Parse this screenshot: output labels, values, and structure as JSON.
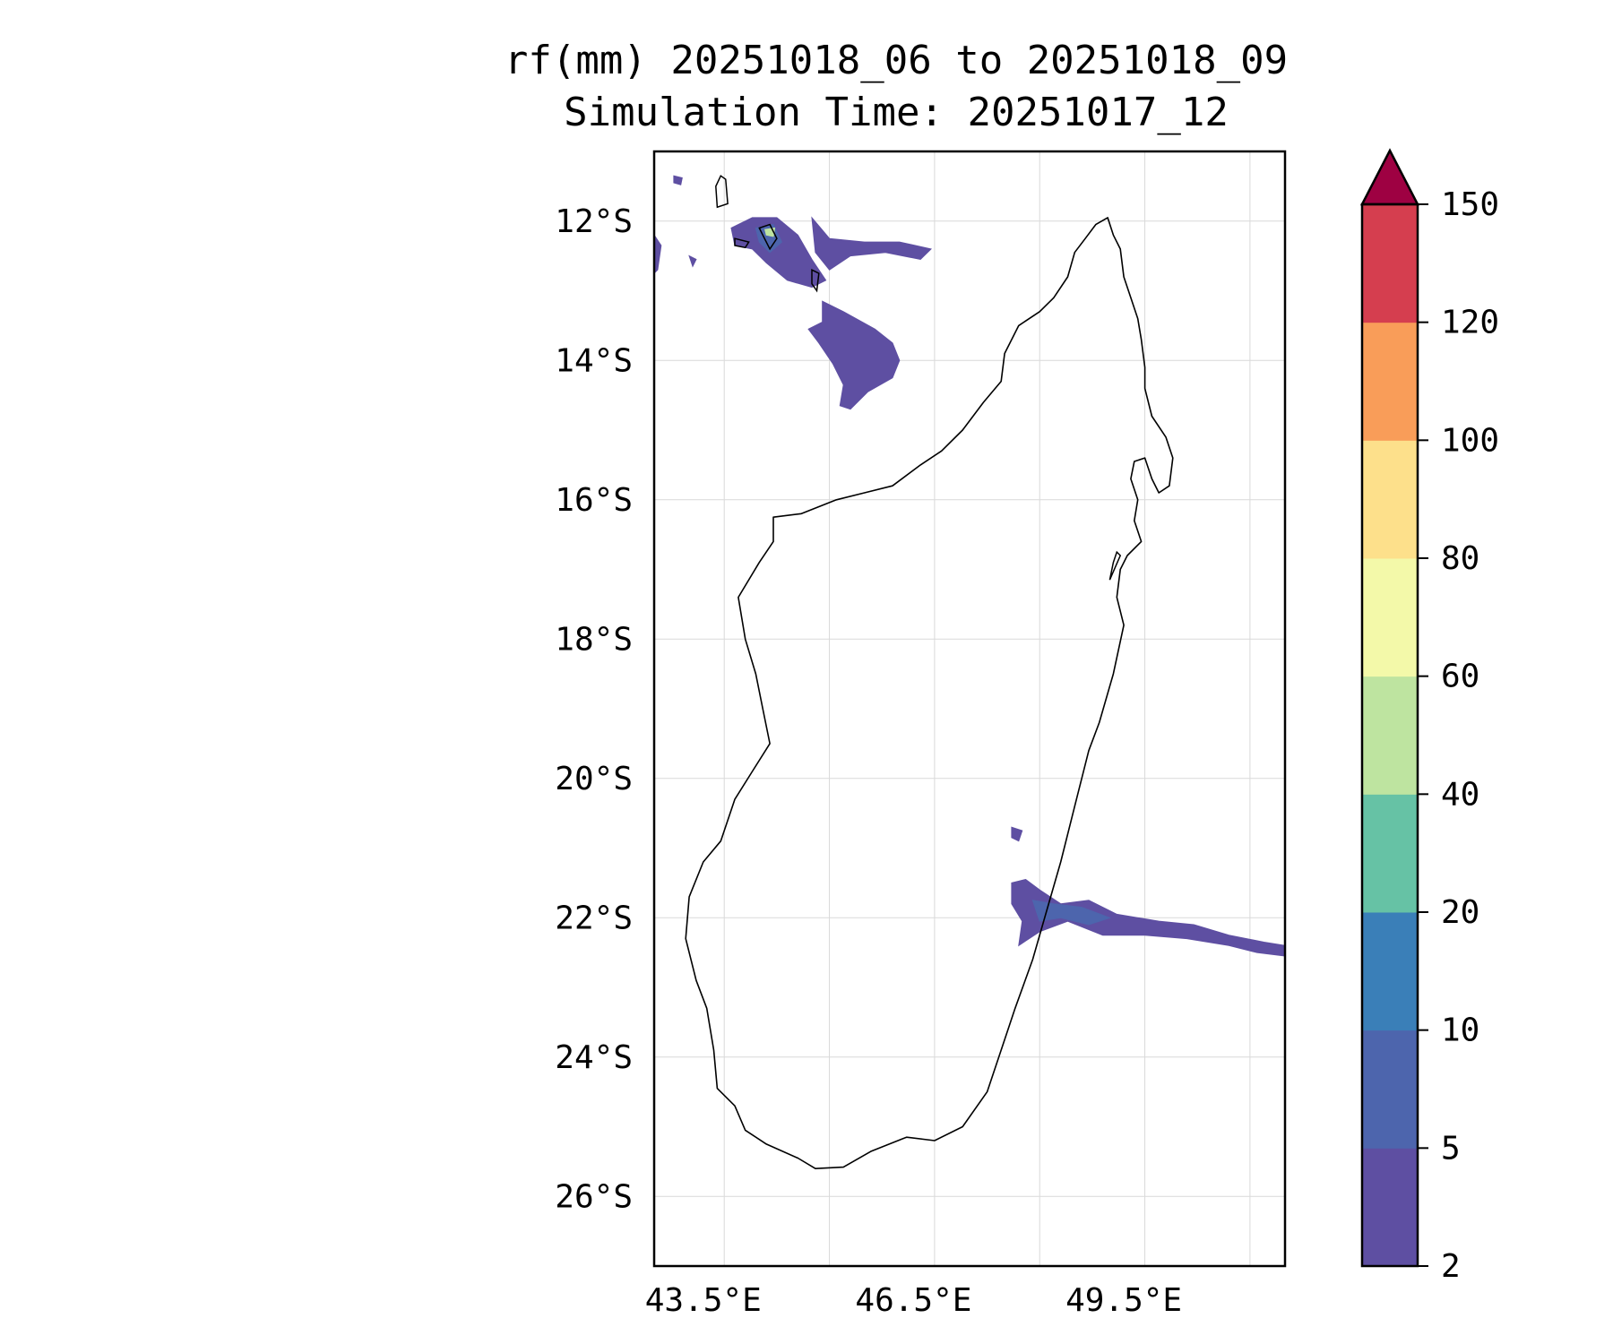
{
  "title": {
    "line1": "rf(mm) 20251018_06 to 20251018_09",
    "line2": "Simulation Time: 20251017_12"
  },
  "map": {
    "lon_range": [
      42.8,
      51.8
    ],
    "lat_range": [
      -27.0,
      -11.0
    ],
    "lon_ticks": [
      {
        "value": 43.5,
        "label": "43.5°E"
      },
      {
        "value": 46.5,
        "label": "46.5°E"
      },
      {
        "value": 49.5,
        "label": "49.5°E"
      }
    ],
    "lat_ticks": [
      {
        "value": -12,
        "label": "12°S"
      },
      {
        "value": -14,
        "label": "14°S"
      },
      {
        "value": -16,
        "label": "16°S"
      },
      {
        "value": -18,
        "label": "18°S"
      },
      {
        "value": -20,
        "label": "20°S"
      },
      {
        "value": -22,
        "label": "22°S"
      },
      {
        "value": -24,
        "label": "24°S"
      },
      {
        "value": -26,
        "label": "26°S"
      }
    ],
    "grid_lons": [
      43.8,
      45.3,
      46.8,
      48.3,
      49.8,
      51.3
    ],
    "grid": true,
    "coastline_color": "#000000",
    "madagascar_coast": [
      [
        49.27,
        -11.95
      ],
      [
        49.35,
        -12.2
      ],
      [
        49.45,
        -12.4
      ],
      [
        49.5,
        -12.8
      ],
      [
        49.6,
        -13.1
      ],
      [
        49.7,
        -13.4
      ],
      [
        49.75,
        -13.7
      ],
      [
        49.8,
        -14.1
      ],
      [
        49.8,
        -14.4
      ],
      [
        49.9,
        -14.8
      ],
      [
        50.1,
        -15.1
      ],
      [
        50.2,
        -15.4
      ],
      [
        50.15,
        -15.8
      ],
      [
        50.0,
        -15.9
      ],
      [
        49.9,
        -15.7
      ],
      [
        49.8,
        -15.4
      ],
      [
        49.65,
        -15.45
      ],
      [
        49.6,
        -15.7
      ],
      [
        49.7,
        -16.0
      ],
      [
        49.65,
        -16.3
      ],
      [
        49.75,
        -16.6
      ],
      [
        49.55,
        -16.8
      ],
      [
        49.45,
        -17.0
      ],
      [
        49.4,
        -17.4
      ],
      [
        49.5,
        -17.8
      ],
      [
        49.35,
        -18.5
      ],
      [
        49.15,
        -19.2
      ],
      [
        49.0,
        -19.6
      ],
      [
        48.8,
        -20.4
      ],
      [
        48.6,
        -21.2
      ],
      [
        48.4,
        -21.9
      ],
      [
        48.2,
        -22.6
      ],
      [
        47.95,
        -23.3
      ],
      [
        47.75,
        -23.9
      ],
      [
        47.55,
        -24.5
      ],
      [
        47.2,
        -25.0
      ],
      [
        46.8,
        -25.2
      ],
      [
        46.4,
        -25.15
      ],
      [
        45.9,
        -25.35
      ],
      [
        45.5,
        -25.58
      ],
      [
        45.1,
        -25.6
      ],
      [
        44.85,
        -25.45
      ],
      [
        44.4,
        -25.25
      ],
      [
        44.1,
        -25.05
      ],
      [
        43.95,
        -24.7
      ],
      [
        43.7,
        -24.45
      ],
      [
        43.65,
        -23.9
      ],
      [
        43.55,
        -23.3
      ],
      [
        43.4,
        -22.9
      ],
      [
        43.25,
        -22.3
      ],
      [
        43.3,
        -21.7
      ],
      [
        43.5,
        -21.2
      ],
      [
        43.75,
        -20.9
      ],
      [
        43.95,
        -20.3
      ],
      [
        44.2,
        -19.9
      ],
      [
        44.45,
        -19.5
      ],
      [
        44.35,
        -19.0
      ],
      [
        44.25,
        -18.5
      ],
      [
        44.1,
        -18.0
      ],
      [
        44.0,
        -17.4
      ],
      [
        44.3,
        -16.9
      ],
      [
        44.5,
        -16.6
      ],
      [
        44.5,
        -16.25
      ],
      [
        44.9,
        -16.2
      ],
      [
        45.4,
        -16.0
      ],
      [
        45.8,
        -15.9
      ],
      [
        46.2,
        -15.8
      ],
      [
        46.6,
        -15.5
      ],
      [
        46.9,
        -15.3
      ],
      [
        47.2,
        -15.0
      ],
      [
        47.5,
        -14.6
      ],
      [
        47.75,
        -14.3
      ],
      [
        47.8,
        -13.9
      ],
      [
        48.0,
        -13.5
      ],
      [
        48.3,
        -13.3
      ],
      [
        48.5,
        -13.1
      ],
      [
        48.7,
        -12.8
      ],
      [
        48.8,
        -12.45
      ],
      [
        48.95,
        -12.25
      ],
      [
        49.1,
        -12.05
      ],
      [
        49.27,
        -11.95
      ]
    ],
    "islands": [
      [
        [
          43.75,
          -11.35
        ],
        [
          43.82,
          -11.4
        ],
        [
          43.85,
          -11.75
        ],
        [
          43.7,
          -11.8
        ],
        [
          43.68,
          -11.5
        ],
        [
          43.75,
          -11.35
        ]
      ],
      [
        [
          44.3,
          -12.1
        ],
        [
          44.45,
          -12.05
        ],
        [
          44.55,
          -12.25
        ],
        [
          44.45,
          -12.4
        ],
        [
          44.35,
          -12.2
        ],
        [
          44.3,
          -12.1
        ]
      ],
      [
        [
          43.95,
          -12.25
        ],
        [
          44.15,
          -12.3
        ],
        [
          44.1,
          -12.38
        ],
        [
          43.95,
          -12.35
        ],
        [
          43.95,
          -12.25
        ]
      ],
      [
        [
          45.05,
          -12.7
        ],
        [
          45.15,
          -12.75
        ],
        [
          45.12,
          -13.0
        ],
        [
          45.05,
          -12.9
        ],
        [
          45.05,
          -12.7
        ]
      ],
      [
        [
          49.4,
          -16.75
        ],
        [
          49.45,
          -16.8
        ],
        [
          49.3,
          -17.15
        ],
        [
          49.35,
          -16.9
        ],
        [
          49.4,
          -16.75
        ]
      ]
    ],
    "precip_shapes": [
      {
        "level": 0,
        "points": [
          [
            43.9,
            -12.1
          ],
          [
            44.2,
            -11.95
          ],
          [
            44.55,
            -11.95
          ],
          [
            44.85,
            -12.2
          ],
          [
            45.05,
            -12.55
          ],
          [
            45.25,
            -12.85
          ],
          [
            45.05,
            -12.95
          ],
          [
            44.7,
            -12.85
          ],
          [
            44.4,
            -12.6
          ],
          [
            44.2,
            -12.4
          ],
          [
            43.95,
            -12.35
          ],
          [
            43.9,
            -12.1
          ]
        ]
      },
      {
        "level": 1,
        "points": [
          [
            44.25,
            -12.1
          ],
          [
            44.5,
            -12.05
          ],
          [
            44.62,
            -12.3
          ],
          [
            44.45,
            -12.45
          ],
          [
            44.3,
            -12.3
          ],
          [
            44.25,
            -12.1
          ]
        ]
      },
      {
        "level": 4,
        "points": [
          [
            44.38,
            -12.12
          ],
          [
            44.52,
            -12.1
          ],
          [
            44.5,
            -12.22
          ],
          [
            44.4,
            -12.2
          ],
          [
            44.38,
            -12.12
          ]
        ]
      },
      {
        "level": 0,
        "points": [
          [
            45.05,
            -11.95
          ],
          [
            45.3,
            -12.25
          ],
          [
            45.8,
            -12.3
          ],
          [
            46.3,
            -12.3
          ],
          [
            46.75,
            -12.4
          ],
          [
            46.6,
            -12.55
          ],
          [
            46.1,
            -12.45
          ],
          [
            45.6,
            -12.5
          ],
          [
            45.3,
            -12.7
          ],
          [
            45.1,
            -12.45
          ],
          [
            45.05,
            -11.95
          ]
        ]
      },
      {
        "level": 0,
        "points": [
          [
            45.2,
            -13.15
          ],
          [
            45.5,
            -13.3
          ],
          [
            45.95,
            -13.55
          ],
          [
            46.2,
            -13.75
          ],
          [
            46.3,
            -14.0
          ],
          [
            46.2,
            -14.25
          ],
          [
            45.85,
            -14.45
          ],
          [
            45.6,
            -14.7
          ],
          [
            45.45,
            -14.65
          ],
          [
            45.5,
            -14.35
          ],
          [
            45.35,
            -14.05
          ],
          [
            45.15,
            -13.75
          ],
          [
            45.0,
            -13.55
          ],
          [
            45.2,
            -13.45
          ],
          [
            45.2,
            -13.15
          ]
        ]
      },
      {
        "level": 0,
        "points": [
          [
            42.8,
            -12.2
          ],
          [
            42.9,
            -12.35
          ],
          [
            42.85,
            -12.7
          ],
          [
            42.8,
            -12.75
          ],
          [
            42.8,
            -12.2
          ]
        ]
      },
      {
        "level": 0,
        "points": [
          [
            43.08,
            -11.35
          ],
          [
            43.2,
            -11.38
          ],
          [
            43.18,
            -11.48
          ],
          [
            43.08,
            -11.45
          ],
          [
            43.08,
            -11.35
          ]
        ]
      },
      {
        "level": 0,
        "points": [
          [
            43.3,
            -12.5
          ],
          [
            43.4,
            -12.55
          ],
          [
            43.35,
            -12.65
          ],
          [
            43.3,
            -12.5
          ]
        ]
      },
      {
        "level": 0,
        "points": [
          [
            47.9,
            -20.7
          ],
          [
            48.05,
            -20.75
          ],
          [
            48.0,
            -20.9
          ],
          [
            47.9,
            -20.85
          ],
          [
            47.9,
            -20.7
          ]
        ]
      },
      {
        "level": 0,
        "points": [
          [
            47.9,
            -21.5
          ],
          [
            48.1,
            -21.45
          ],
          [
            48.3,
            -21.6
          ],
          [
            48.6,
            -21.8
          ],
          [
            49.0,
            -21.75
          ],
          [
            49.4,
            -21.95
          ],
          [
            50.0,
            -22.05
          ],
          [
            50.5,
            -22.1
          ],
          [
            51.0,
            -22.25
          ],
          [
            51.5,
            -22.35
          ],
          [
            51.8,
            -22.4
          ],
          [
            51.8,
            -22.55
          ],
          [
            51.4,
            -22.5
          ],
          [
            51.0,
            -22.4
          ],
          [
            50.4,
            -22.3
          ],
          [
            49.8,
            -22.25
          ],
          [
            49.2,
            -22.25
          ],
          [
            48.7,
            -22.05
          ],
          [
            48.3,
            -22.2
          ],
          [
            48.0,
            -22.4
          ],
          [
            48.05,
            -22.05
          ],
          [
            47.9,
            -21.8
          ],
          [
            47.9,
            -21.5
          ]
        ]
      },
      {
        "level": 1,
        "points": [
          [
            48.2,
            -21.75
          ],
          [
            48.5,
            -21.8
          ],
          [
            48.9,
            -21.85
          ],
          [
            49.3,
            -22.0
          ],
          [
            49.0,
            -22.1
          ],
          [
            48.6,
            -22.0
          ],
          [
            48.3,
            -22.05
          ],
          [
            48.2,
            -21.75
          ]
        ]
      }
    ]
  },
  "colorbar": {
    "boundaries": [
      2,
      5,
      10,
      20,
      40,
      60,
      80,
      100,
      120,
      150
    ],
    "tick_labels": [
      "2",
      "5",
      "10",
      "20",
      "40",
      "60",
      "80",
      "100",
      "120",
      "150"
    ],
    "colors": [
      "#5e4fa2",
      "#4d65ad",
      "#3a7fb8",
      "#66c2a5",
      "#bee4a0",
      "#f3f9a9",
      "#fde08b",
      "#f99d59",
      "#d53e4f"
    ],
    "extend_color": "#9e0142",
    "extend": "max"
  }
}
